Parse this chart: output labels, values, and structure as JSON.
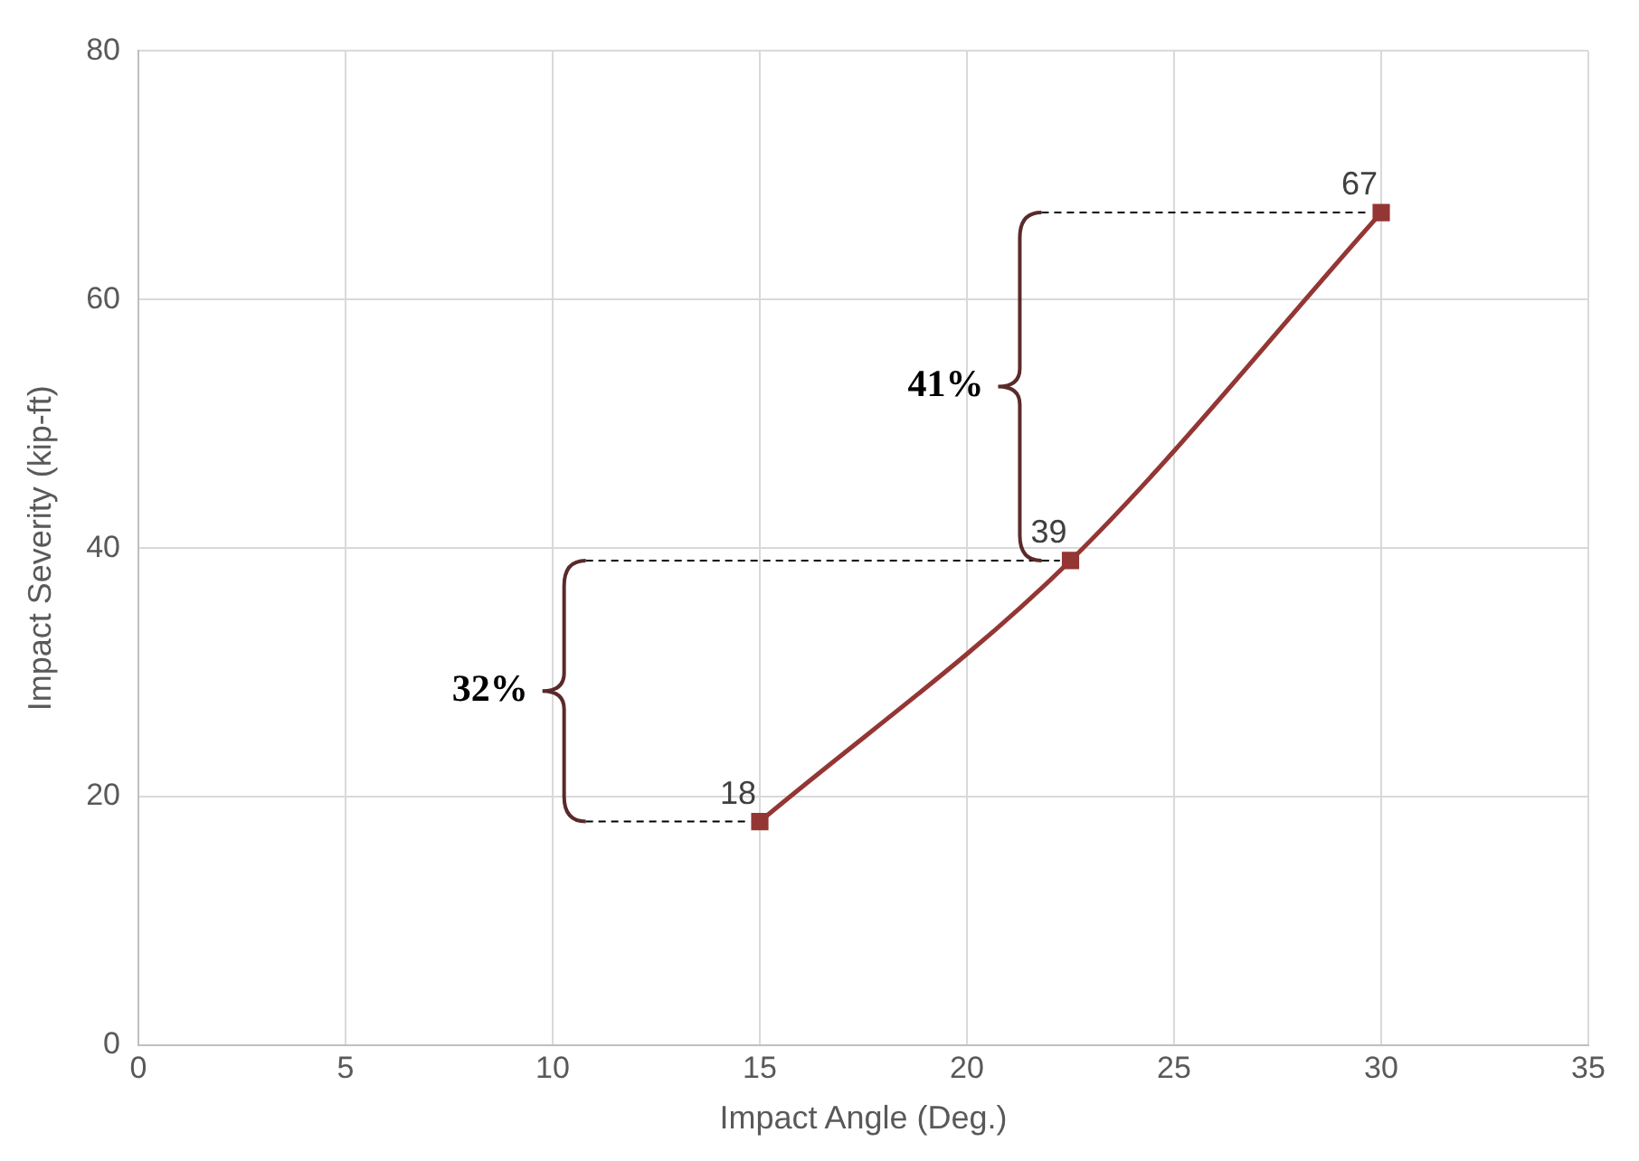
{
  "chart_data": {
    "type": "line",
    "xlabel": "Impact Angle (Deg.)",
    "ylabel": "Impact Severity (kip-ft)",
    "x": [
      15,
      22.5,
      30
    ],
    "series": [
      {
        "color": "#943634",
        "values": [
          18,
          39,
          67
        ]
      }
    ],
    "xlim": [
      0,
      35
    ],
    "xticks": [
      0,
      5,
      10,
      15,
      20,
      25,
      30,
      35
    ],
    "ylim": [
      0,
      80
    ],
    "yticks": [
      0,
      20,
      40,
      60,
      80
    ],
    "grid": true,
    "legend": false,
    "marker": "square",
    "line_style": "solid",
    "data_labels": true,
    "annotations": [
      "32%",
      "41%"
    ]
  }
}
